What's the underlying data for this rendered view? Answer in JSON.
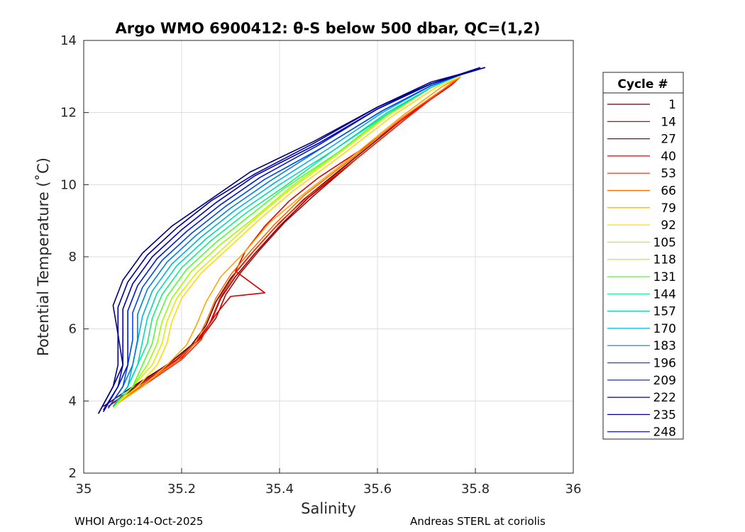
{
  "chart_data": {
    "type": "line",
    "title": "Argo WMO 6900412: θ-S below 500 dbar,  QC=(1,2)",
    "xlabel": "Salinity",
    "ylabel": "Potential Temperature (˚C)",
    "xlim": [
      35,
      36
    ],
    "ylim": [
      2,
      14
    ],
    "xticks": [
      35,
      35.2,
      35.4,
      35.6,
      35.8,
      36
    ],
    "xtick_labels": [
      "35",
      "35.2",
      "35.4",
      "35.6",
      "35.8",
      "36"
    ],
    "yticks": [
      2,
      4,
      6,
      8,
      10,
      12,
      14
    ],
    "ytick_labels": [
      "2",
      "4",
      "6",
      "8",
      "10",
      "12",
      "14"
    ],
    "grid": true,
    "legend_title": "Cycle #",
    "legend_position": "right",
    "series": [
      {
        "name": "1",
        "color": "#5a0000",
        "x": [
          35.04,
          35.1,
          35.17,
          35.22,
          35.25,
          35.27,
          35.3,
          35.34,
          35.39,
          35.45,
          35.55,
          35.65,
          35.74,
          35.77
        ],
        "y": [
          3.85,
          4.4,
          5.0,
          5.55,
          6.1,
          6.75,
          7.4,
          8.05,
          8.8,
          9.6,
          10.7,
          11.8,
          12.7,
          13.0
        ]
      },
      {
        "name": "14",
        "color": "#8c0000",
        "x": [
          35.05,
          35.11,
          35.18,
          35.23,
          35.26,
          35.28,
          35.31,
          35.35,
          35.4,
          35.46,
          35.56,
          35.66,
          35.74,
          35.77
        ],
        "y": [
          3.85,
          4.45,
          5.1,
          5.65,
          6.2,
          6.85,
          7.45,
          8.1,
          8.85,
          9.65,
          10.75,
          11.85,
          12.7,
          13.0
        ]
      },
      {
        "name": "27",
        "color": "#b40000",
        "x": [
          35.05,
          35.12,
          35.19,
          35.24,
          35.27,
          35.29,
          35.32,
          35.36,
          35.41,
          35.47,
          35.56,
          35.66,
          35.74,
          35.77
        ],
        "y": [
          3.85,
          4.5,
          5.15,
          5.75,
          6.3,
          6.95,
          7.55,
          8.2,
          8.95,
          9.7,
          10.75,
          11.85,
          12.7,
          13.0
        ]
      },
      {
        "name": "40",
        "color": "#dc0000",
        "x": [
          35.06,
          35.13,
          35.2,
          35.24,
          35.27,
          35.3,
          35.37,
          35.31,
          35.33,
          35.37,
          35.42,
          35.48,
          35.57,
          35.67,
          35.75,
          35.77
        ],
        "y": [
          3.85,
          4.55,
          5.2,
          5.8,
          6.4,
          6.9,
          7.0,
          7.6,
          8.15,
          8.85,
          9.55,
          10.2,
          11.0,
          12.0,
          12.75,
          13.0
        ]
      },
      {
        "name": "53",
        "color": "#ff2400",
        "x": [
          35.06,
          35.13,
          35.2,
          35.24,
          35.26,
          35.28,
          35.31,
          35.35,
          35.4,
          35.46,
          35.56,
          35.66,
          35.74,
          35.77
        ],
        "y": [
          3.85,
          4.5,
          5.15,
          5.7,
          6.25,
          6.9,
          7.55,
          8.2,
          8.95,
          9.7,
          10.75,
          11.85,
          12.7,
          13.0
        ]
      },
      {
        "name": "66",
        "color": "#ff6800",
        "x": [
          35.06,
          35.12,
          35.19,
          35.23,
          35.25,
          35.27,
          35.3,
          35.34,
          35.39,
          35.45,
          35.55,
          35.65,
          35.74,
          35.77
        ],
        "y": [
          3.85,
          4.45,
          5.1,
          5.65,
          6.2,
          6.85,
          7.5,
          8.15,
          8.9,
          9.7,
          10.75,
          11.85,
          12.7,
          13.0
        ]
      },
      {
        "name": "79",
        "color": "#ffa400",
        "x": [
          35.06,
          35.12,
          35.17,
          35.21,
          35.23,
          35.25,
          35.28,
          35.33,
          35.38,
          35.45,
          35.55,
          35.65,
          35.73,
          35.77
        ],
        "y": [
          3.85,
          4.4,
          5.0,
          5.55,
          6.1,
          6.75,
          7.45,
          8.15,
          8.95,
          9.75,
          10.8,
          11.9,
          12.7,
          13.0
        ]
      },
      {
        "name": "92",
        "color": "#ffdc00",
        "x": [
          35.06,
          35.11,
          35.15,
          35.17,
          35.18,
          35.2,
          35.24,
          35.3,
          35.36,
          35.43,
          35.53,
          35.63,
          35.72,
          35.77
        ],
        "y": [
          3.85,
          4.4,
          5.0,
          5.6,
          6.2,
          6.85,
          7.55,
          8.3,
          9.05,
          9.85,
          10.85,
          11.9,
          12.7,
          13.0
        ]
      },
      {
        "name": "105",
        "color": "#d8f000",
        "x": [
          35.06,
          35.1,
          35.14,
          35.16,
          35.17,
          35.19,
          35.23,
          35.29,
          35.35,
          35.42,
          35.52,
          35.62,
          35.71,
          35.77
        ],
        "y": [
          3.8,
          4.4,
          5.0,
          5.6,
          6.2,
          6.85,
          7.55,
          8.3,
          9.05,
          9.85,
          10.85,
          11.9,
          12.7,
          13.05
        ]
      },
      {
        "name": "118",
        "color": "#9cff00",
        "x": [
          35.06,
          35.1,
          35.13,
          35.15,
          35.16,
          35.18,
          35.22,
          35.28,
          35.35,
          35.42,
          35.52,
          35.62,
          35.71,
          35.77
        ],
        "y": [
          3.85,
          4.4,
          5.0,
          5.6,
          6.2,
          6.85,
          7.6,
          8.35,
          9.1,
          9.9,
          10.9,
          11.95,
          12.7,
          13.05
        ]
      },
      {
        "name": "131",
        "color": "#50ff30",
        "x": [
          35.06,
          35.1,
          35.12,
          35.14,
          35.15,
          35.17,
          35.21,
          35.27,
          35.34,
          35.41,
          35.52,
          35.62,
          35.71,
          35.77
        ],
        "y": [
          3.85,
          4.4,
          5.0,
          5.6,
          6.25,
          6.9,
          7.65,
          8.4,
          9.15,
          9.9,
          10.9,
          11.95,
          12.7,
          13.05
        ]
      },
      {
        "name": "144",
        "color": "#10ef80",
        "x": [
          35.06,
          35.09,
          35.11,
          35.13,
          35.14,
          35.16,
          35.2,
          35.26,
          35.33,
          35.41,
          35.51,
          35.62,
          35.71,
          35.77
        ],
        "y": [
          3.85,
          4.4,
          5.0,
          5.6,
          6.3,
          6.95,
          7.7,
          8.45,
          9.2,
          9.95,
          10.95,
          11.95,
          12.7,
          13.05
        ]
      },
      {
        "name": "157",
        "color": "#00d8c0",
        "x": [
          35.06,
          35.09,
          35.11,
          35.12,
          35.13,
          35.15,
          35.19,
          35.25,
          35.32,
          35.4,
          35.51,
          35.62,
          35.71,
          35.77
        ],
        "y": [
          3.85,
          4.4,
          5.0,
          5.65,
          6.3,
          7.0,
          7.75,
          8.5,
          9.25,
          10.0,
          10.95,
          12.0,
          12.7,
          13.05
        ]
      },
      {
        "name": "170",
        "color": "#00b0e0",
        "x": [
          35.06,
          35.09,
          35.1,
          35.11,
          35.12,
          35.14,
          35.18,
          35.24,
          35.31,
          35.39,
          35.5,
          35.61,
          35.71,
          35.77
        ],
        "y": [
          3.85,
          4.4,
          5.0,
          5.65,
          6.35,
          7.05,
          7.8,
          8.55,
          9.3,
          10.05,
          11.0,
          12.0,
          12.75,
          13.05
        ]
      },
      {
        "name": "183",
        "color": "#0080d8",
        "x": [
          35.05,
          35.08,
          35.1,
          35.11,
          35.11,
          35.13,
          35.17,
          35.23,
          35.3,
          35.38,
          35.49,
          35.61,
          35.71,
          35.78
        ],
        "y": [
          3.8,
          4.4,
          5.0,
          5.7,
          6.4,
          7.1,
          7.85,
          8.6,
          9.35,
          10.1,
          11.05,
          12.05,
          12.75,
          13.1
        ]
      },
      {
        "name": "196",
        "color": "#0048e8",
        "x": [
          35.05,
          35.08,
          35.09,
          35.1,
          35.1,
          35.12,
          35.16,
          35.22,
          35.29,
          35.37,
          35.49,
          35.61,
          35.71,
          35.79
        ],
        "y": [
          3.8,
          4.4,
          5.0,
          5.7,
          6.45,
          7.15,
          7.9,
          8.65,
          9.4,
          10.15,
          11.05,
          12.05,
          12.75,
          13.15
        ]
      },
      {
        "name": "209",
        "color": "#0018d0",
        "x": [
          35.04,
          35.07,
          35.09,
          35.09,
          35.09,
          35.11,
          35.15,
          35.21,
          35.28,
          35.36,
          35.48,
          35.6,
          35.71,
          35.8
        ],
        "y": [
          3.75,
          4.4,
          5.0,
          5.75,
          6.5,
          7.2,
          7.95,
          8.7,
          9.45,
          10.2,
          11.1,
          12.1,
          12.8,
          13.2
        ]
      },
      {
        "name": "222",
        "color": "#0000b4",
        "x": [
          35.04,
          35.07,
          35.08,
          35.08,
          35.08,
          35.1,
          35.14,
          35.2,
          35.27,
          35.35,
          35.48,
          35.6,
          35.71,
          35.81
        ],
        "y": [
          3.7,
          4.4,
          5.0,
          5.8,
          6.55,
          7.25,
          8.0,
          8.75,
          9.5,
          10.25,
          11.15,
          12.1,
          12.8,
          13.25
        ]
      },
      {
        "name": "235",
        "color": "#000096",
        "x": [
          35.03,
          35.06,
          35.08,
          35.07,
          35.07,
          35.09,
          35.13,
          35.19,
          35.26,
          35.35,
          35.47,
          35.6,
          35.71,
          35.82
        ],
        "y": [
          3.65,
          4.4,
          5.0,
          5.85,
          6.6,
          7.3,
          8.05,
          8.8,
          9.55,
          10.3,
          11.15,
          12.15,
          12.8,
          13.25
        ]
      },
      {
        "name": "248",
        "color": "#00007a",
        "x": [
          35.03,
          35.06,
          35.07,
          35.07,
          35.06,
          35.08,
          35.12,
          35.18,
          35.26,
          35.34,
          35.47,
          35.6,
          35.71,
          35.82
        ],
        "y": [
          3.65,
          4.4,
          5.0,
          5.85,
          6.65,
          7.35,
          8.1,
          8.85,
          9.6,
          10.35,
          11.2,
          12.15,
          12.85,
          13.25
        ]
      }
    ]
  },
  "footer": {
    "left": "WHOI Argo:14-Oct-2025",
    "right": "Andreas STERL at coriolis"
  }
}
